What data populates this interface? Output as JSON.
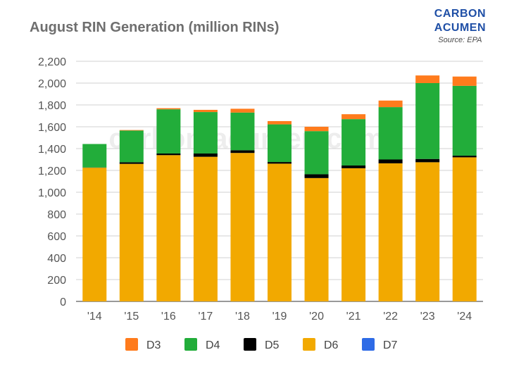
{
  "header": {
    "title": "August RIN Generation (million RINs)",
    "brand_line1": "CARBON",
    "brand_line2": "ACUMEN",
    "source": "Source: EPA"
  },
  "watermark": "carbon-acumen.com",
  "chart_data": {
    "type": "bar",
    "stacked": true,
    "title": "August RIN Generation (million RINs)",
    "categories": [
      "'14",
      "'15",
      "'16",
      "'17",
      "'18",
      "'19",
      "'20",
      "'21",
      "'22",
      "'23",
      "'24"
    ],
    "series": [
      {
        "name": "D6",
        "color": "#f2a900",
        "values": [
          1225,
          1260,
          1340,
          1325,
          1360,
          1262,
          1130,
          1220,
          1265,
          1275,
          1320
        ]
      },
      {
        "name": "D5",
        "color": "#000000",
        "values": [
          2,
          15,
          15,
          30,
          25,
          15,
          35,
          25,
          35,
          30,
          15
        ]
      },
      {
        "name": "D4",
        "color": "#22ad3a",
        "values": [
          215,
          290,
          405,
          380,
          345,
          345,
          395,
          425,
          480,
          695,
          640
        ]
      },
      {
        "name": "D3",
        "color": "#ff7b1c",
        "values": [
          0,
          5,
          10,
          20,
          35,
          30,
          40,
          45,
          60,
          70,
          85
        ]
      },
      {
        "name": "D7",
        "color": "#2e6be6",
        "values": [
          0,
          0,
          0,
          0,
          0,
          0,
          0,
          0,
          0,
          0,
          0
        ]
      }
    ],
    "legend_order": [
      "D3",
      "D4",
      "D5",
      "D6",
      "D7"
    ],
    "legend_position": "bottom",
    "ylim": [
      0,
      2200
    ],
    "yticks": [
      0,
      200,
      400,
      600,
      800,
      1000,
      1200,
      1400,
      1600,
      1800,
      2000,
      2200
    ],
    "ytick_labels": [
      "0",
      "200",
      "400",
      "600",
      "800",
      "1,000",
      "1,200",
      "1,400",
      "1,600",
      "1,800",
      "2,000",
      "2,200"
    ],
    "grid": true,
    "xlabel": "",
    "ylabel": ""
  }
}
